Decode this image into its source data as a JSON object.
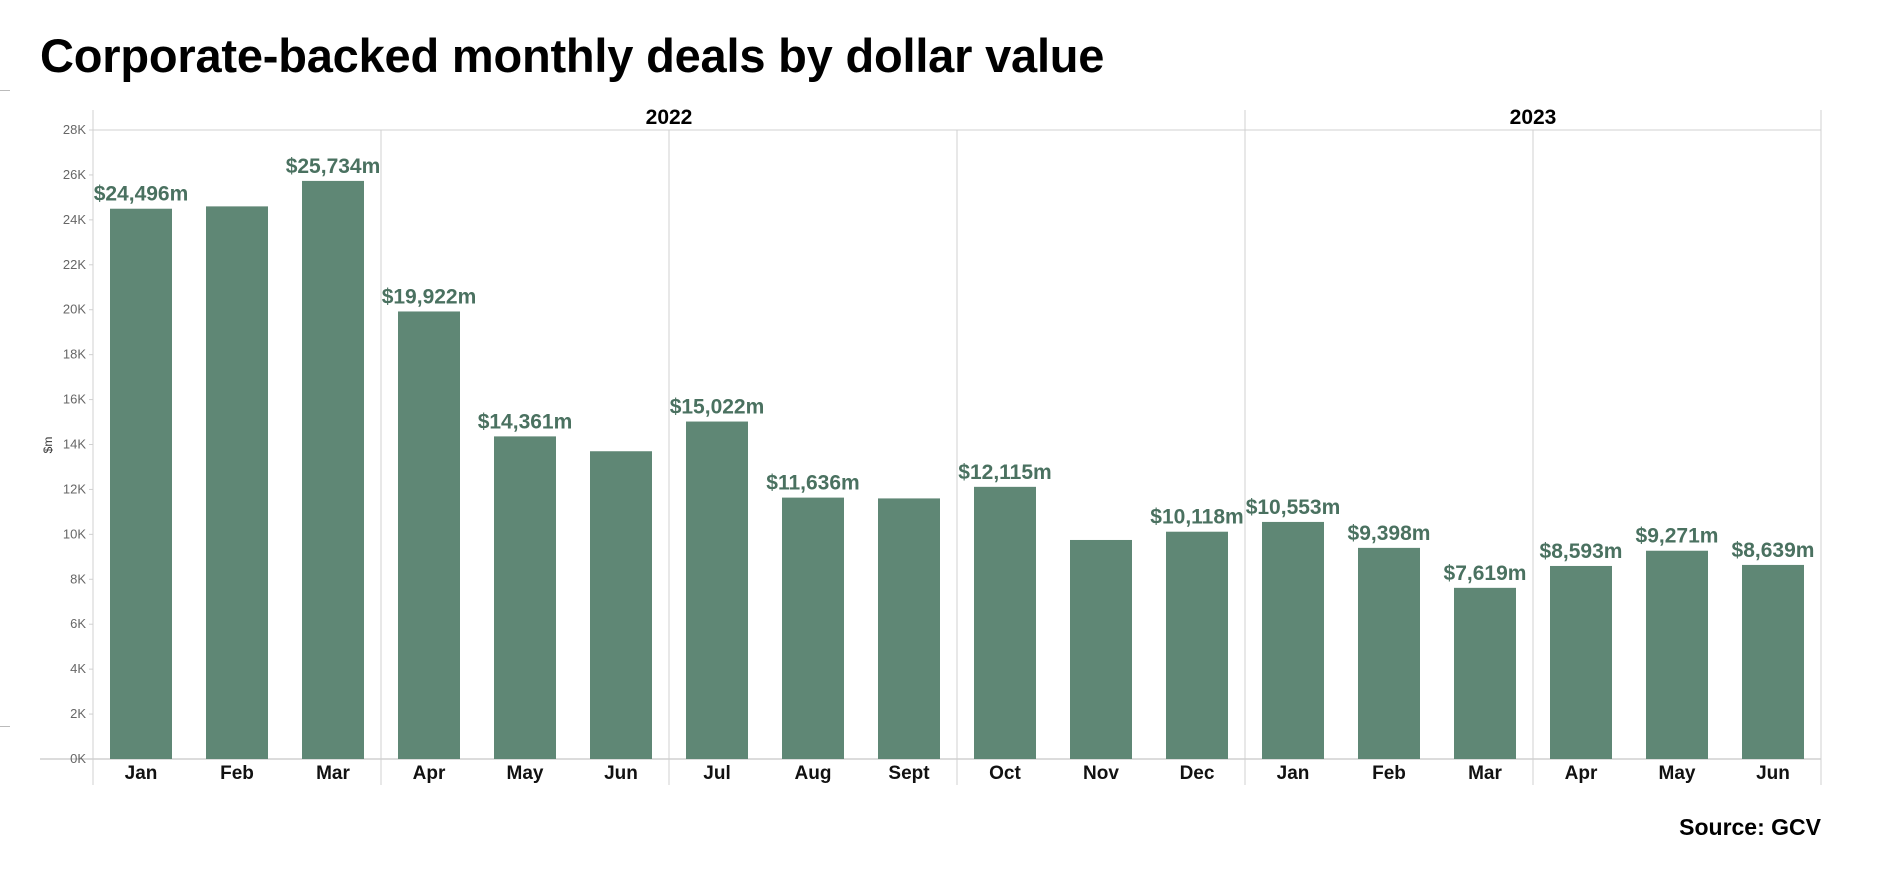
{
  "title": "Corporate-backed monthly deals by dollar value",
  "source": "Source: GCV",
  "colors": {
    "bar": "#5f8775",
    "label": "#4a7160",
    "grid": "#d0d0d0"
  },
  "chart_data": {
    "type": "bar",
    "title": "Corporate-backed monthly deals by dollar value",
    "xlabel": "",
    "ylabel": "$m",
    "ylim": [
      0,
      28000
    ],
    "yticks": [
      0,
      2000,
      4000,
      6000,
      8000,
      10000,
      12000,
      14000,
      16000,
      18000,
      20000,
      22000,
      24000,
      26000,
      28000
    ],
    "ytick_labels": [
      "0K",
      "2K",
      "4K",
      "6K",
      "8K",
      "10K",
      "12K",
      "14K",
      "16K",
      "18K",
      "20K",
      "22K",
      "24K",
      "26K",
      "28K"
    ],
    "grid": false,
    "legend": "none",
    "groups": [
      {
        "name": "2022",
        "start": 0,
        "count": 12
      },
      {
        "name": "2023",
        "start": 12,
        "count": 6
      }
    ],
    "categories": [
      "Jan",
      "Feb",
      "Mar",
      "Apr",
      "May",
      "Jun",
      "Jul",
      "Aug",
      "Sept",
      "Oct",
      "Nov",
      "Dec",
      "Jan",
      "Feb",
      "Mar",
      "Apr",
      "May",
      "Jun"
    ],
    "values": [
      24496,
      24600,
      25734,
      19922,
      14361,
      13700,
      15022,
      11636,
      11600,
      12115,
      9750,
      10118,
      10553,
      9398,
      7619,
      8593,
      9271,
      8639
    ],
    "data_labels": [
      "$24,496m",
      "",
      "$25,734m",
      "$19,922m",
      "$14,361m",
      "",
      "$15,022m",
      "$11,636m",
      "",
      "$12,115m",
      "",
      "$10,118m",
      "$10,553m",
      "$9,398m",
      "$7,619m",
      "$8,593m",
      "$9,271m",
      "$8,639m"
    ]
  }
}
